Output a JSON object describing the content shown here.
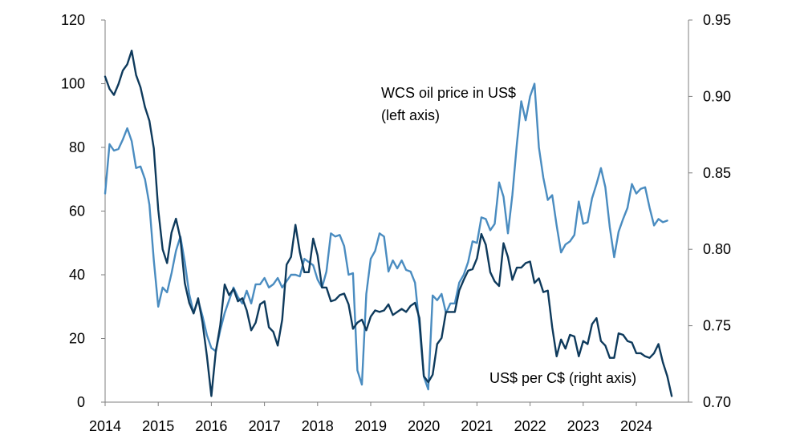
{
  "chart_data": {
    "type": "line",
    "title": "",
    "xlabel": "",
    "x_ticks": [
      "2014",
      "2015",
      "2016",
      "2017",
      "2018",
      "2019",
      "2020",
      "2021",
      "2022",
      "2023",
      "2024"
    ],
    "left_axis": {
      "range": [
        0,
        120
      ],
      "ticks": [
        "0",
        "20",
        "40",
        "60",
        "80",
        "100",
        "120"
      ]
    },
    "right_axis": {
      "range": [
        0.7,
        0.95
      ],
      "ticks": [
        "0.70",
        "0.75",
        "0.80",
        "0.85",
        "0.90",
        "0.95"
      ]
    },
    "grid": false,
    "legend": "none",
    "annotations": {
      "wcs_line1": "WCS oil price in US$",
      "wcs_line2": "(left axis)",
      "fx": "US$ per C$ (right axis)"
    },
    "series": [
      {
        "key": "wcs",
        "axis": "left",
        "color": "#4a8cc0",
        "x_start": "2014-01",
        "values": [
          65.5,
          81.0,
          79.0,
          79.5,
          82.5,
          86.0,
          82.0,
          73.5,
          74.0,
          70.0,
          62.0,
          44.5,
          30.0,
          36.0,
          34.5,
          40.5,
          47.5,
          52.0,
          44.0,
          34.0,
          28.0,
          32.0,
          27.0,
          21.0,
          17.0,
          16.0,
          22.5,
          28.0,
          32.0,
          36.0,
          33.0,
          31.0,
          35.0,
          31.0,
          37.0,
          37.0,
          39.0,
          36.0,
          37.0,
          39.0,
          36.0,
          38.0,
          40.0,
          40.0,
          39.5,
          45.0,
          44.0,
          43.0,
          38.5,
          36.0,
          41.0,
          53.0,
          52.0,
          52.5,
          49.0,
          40.0,
          40.5,
          10.0,
          5.5,
          34.0,
          45.0,
          47.5,
          53.0,
          52.0,
          41.0,
          44.5,
          42.0,
          44.5,
          41.5,
          41.0,
          37.5,
          24.0,
          8.0,
          4.0,
          33.5,
          32.0,
          34.0,
          28.0,
          31.0,
          31.0,
          37.5,
          40.0,
          44.0,
          50.5,
          50.0,
          58.0,
          57.5,
          54.0,
          56.0,
          69.0,
          64.5,
          53.0,
          65.0,
          81.0,
          94.5,
          88.5,
          96.0,
          100.0,
          80.0,
          70.5,
          63.5,
          65.0,
          55.5,
          47.0,
          49.5,
          50.5,
          52.5,
          63.0,
          56.0,
          56.5,
          64.0,
          68.5,
          73.5,
          67.5,
          55.0,
          45.5,
          53.5,
          57.5,
          61.0,
          68.5,
          65.5,
          67.0,
          67.5,
          61.0,
          55.5,
          57.5,
          56.5,
          57.0
        ]
      },
      {
        "key": "fx",
        "axis": "right",
        "color": "#0e3a5c",
        "x_start": "2014-01",
        "values": [
          0.913,
          0.905,
          0.901,
          0.908,
          0.917,
          0.921,
          0.93,
          0.914,
          0.906,
          0.893,
          0.884,
          0.866,
          0.826,
          0.8,
          0.791,
          0.811,
          0.82,
          0.807,
          0.778,
          0.765,
          0.758,
          0.768,
          0.752,
          0.73,
          0.704,
          0.733,
          0.75,
          0.777,
          0.77,
          0.774,
          0.766,
          0.768,
          0.76,
          0.747,
          0.752,
          0.764,
          0.766,
          0.749,
          0.746,
          0.737,
          0.754,
          0.79,
          0.795,
          0.816,
          0.798,
          0.785,
          0.785,
          0.807,
          0.796,
          0.775,
          0.775,
          0.766,
          0.767,
          0.77,
          0.771,
          0.764,
          0.748,
          0.752,
          0.754,
          0.747,
          0.756,
          0.76,
          0.759,
          0.76,
          0.764,
          0.757,
          0.759,
          0.761,
          0.759,
          0.763,
          0.765,
          0.755,
          0.717,
          0.713,
          0.718,
          0.738,
          0.742,
          0.759,
          0.759,
          0.759,
          0.773,
          0.78,
          0.786,
          0.787,
          0.794,
          0.81,
          0.803,
          0.785,
          0.779,
          0.776,
          0.804,
          0.795,
          0.78,
          0.788,
          0.788,
          0.791,
          0.792,
          0.778,
          0.781,
          0.772,
          0.773,
          0.749,
          0.73,
          0.741,
          0.735,
          0.744,
          0.743,
          0.73,
          0.74,
          0.738,
          0.751,
          0.755,
          0.74,
          0.737,
          0.729,
          0.729,
          0.745,
          0.744,
          0.74,
          0.739,
          0.732,
          0.732,
          0.73,
          0.729,
          0.732,
          0.738,
          0.726,
          0.717,
          0.704
        ]
      }
    ]
  }
}
